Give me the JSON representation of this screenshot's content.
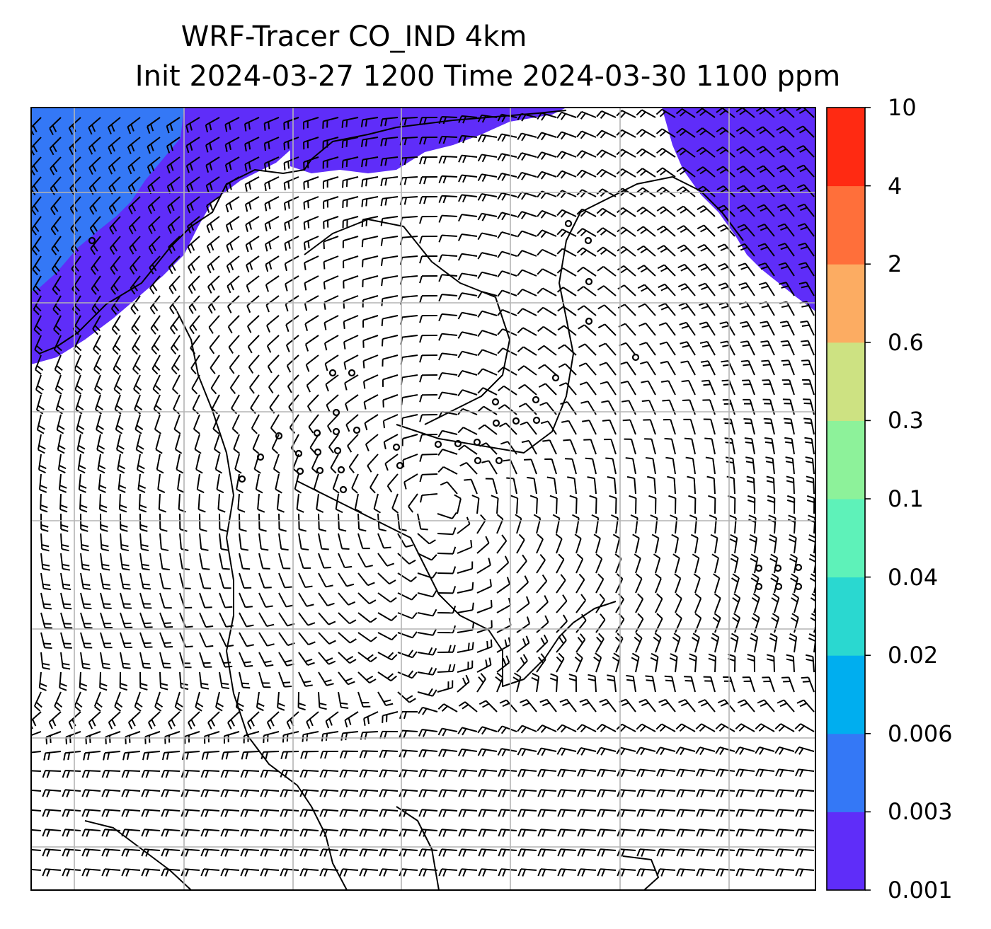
{
  "title": {
    "line1": "WRF-Tracer CO_IND 4km",
    "line2": "Init 2024-03-27 1200 Time 2024-03-30 1100 ppm"
  },
  "map": {
    "field": "CO_IND tracer concentration",
    "overlay": "wind barbs",
    "gridlines": true,
    "colors": {
      "background": "#ffffff",
      "coastline": "#000000",
      "gridline": "#b4b4b4",
      "barb": "#000000"
    }
  },
  "colorbar": {
    "levels": [
      "0.001",
      "0.003",
      "0.006",
      "0.02",
      "0.04",
      "0.1",
      "0.3",
      "0.6",
      "2",
      "4",
      "10"
    ],
    "colors": [
      "#5f2df9",
      "#3478f6",
      "#00aeef",
      "#2ad8d0",
      "#5ef2b9",
      "#8df29a",
      "#cde282",
      "#fcac62",
      "#ff6f3a",
      "#ff2a12"
    ]
  }
}
